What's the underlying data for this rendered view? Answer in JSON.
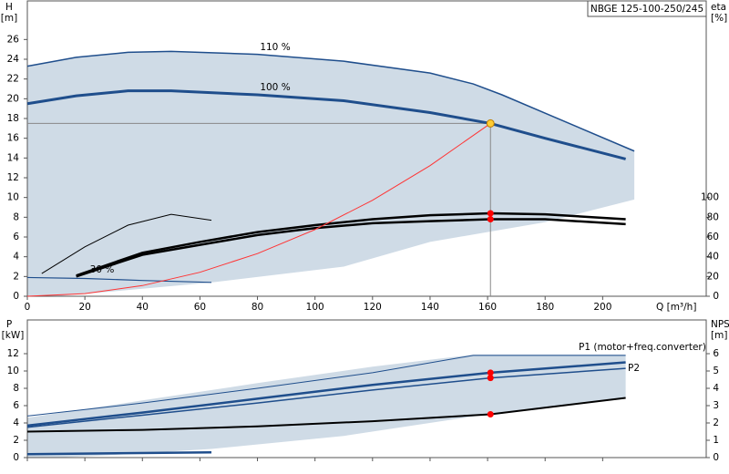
{
  "chart_data": [
    {
      "type": "line",
      "model": "NBGE 125-100-250/245",
      "ylabel": "H",
      "yunit": "[m]",
      "y2label": "eta",
      "y2unit": "[%]",
      "xlabel": "Q [m³/h]",
      "xlim": [
        0,
        236
      ],
      "xticks": [
        0,
        20,
        40,
        60,
        80,
        100,
        120,
        140,
        160,
        180,
        200
      ],
      "ylim": [
        0,
        30
      ],
      "yticks": [
        0,
        2,
        4,
        6,
        8,
        10,
        12,
        14,
        16,
        18,
        20,
        22,
        24,
        26
      ],
      "y2lim": [
        0,
        300
      ],
      "y2ticks": [
        0,
        20,
        40,
        60,
        80,
        100
      ],
      "operating_range": {
        "color": "#cfdbe6",
        "x": [
          0,
          17,
          35,
          50,
          80,
          110,
          140,
          155,
          165,
          190,
          211,
          211,
          180,
          140,
          110,
          64,
          30,
          10,
          0
        ],
        "y": [
          23.3,
          24.2,
          24.7,
          24.8,
          24.5,
          23.8,
          22.6,
          21.5,
          20.4,
          17.3,
          14.7,
          9.8,
          7.5,
          5.5,
          3.0,
          1.4,
          0.5,
          0,
          0
        ]
      },
      "series": [
        {
          "name": "110 %",
          "color": "#1f4e8c",
          "x": [
            0,
            17,
            35,
            50,
            80,
            110,
            140,
            155,
            165,
            190,
            211
          ],
          "values": [
            23.3,
            24.2,
            24.7,
            24.8,
            24.5,
            23.8,
            22.6,
            21.5,
            20.4,
            17.3,
            14.7
          ]
        },
        {
          "name": "100 %",
          "color": "#1f4e8c",
          "x": [
            0,
            17,
            35,
            50,
            80,
            110,
            140,
            161,
            180,
            208
          ],
          "values": [
            19.5,
            20.3,
            20.8,
            20.8,
            20.4,
            19.8,
            18.6,
            17.5,
            16.0,
            13.9
          ]
        },
        {
          "name": "30 %",
          "color": "#1f4e8c",
          "x": [
            0,
            20,
            40,
            64
          ],
          "values": [
            1.9,
            1.8,
            1.6,
            1.4
          ]
        },
        {
          "color": "#000000",
          "axis": "y2",
          "x": [
            17,
            40,
            60,
            80,
            100,
            120,
            140,
            161,
            180,
            208
          ],
          "values": [
            20,
            42,
            52,
            62,
            69,
            74,
            76,
            78,
            78,
            73
          ]
        },
        {
          "color": "#000000",
          "axis": "y2",
          "x": [
            17,
            40,
            60,
            80,
            100,
            120,
            140,
            161,
            180,
            208
          ],
          "values": [
            21,
            44,
            55,
            65,
            72,
            78,
            82,
            84,
            83,
            78
          ]
        },
        {
          "color": "#000000",
          "axis": "y2",
          "x": [
            5,
            20,
            35,
            50,
            64
          ],
          "values": [
            23,
            50,
            72,
            83,
            77
          ]
        },
        {
          "color": "#ff3333",
          "x": [
            0,
            20,
            40,
            60,
            80,
            100,
            120,
            140,
            161
          ],
          "values": [
            0,
            0.27,
            1.08,
            2.43,
            4.32,
            6.75,
            9.72,
            13.23,
            17.5
          ]
        }
      ],
      "duty_point": {
        "x": 161,
        "y": 17.5,
        "color": "#ffcc33"
      },
      "markers": [
        {
          "x": 161,
          "y": 84,
          "axis": "y2",
          "color": "#ff0000"
        },
        {
          "x": 161,
          "y": 78,
          "axis": "y2",
          "color": "#ff0000"
        }
      ]
    },
    {
      "type": "line",
      "ylabel": "P",
      "yunit": "[kW]",
      "y2label": "NPSH",
      "y2unit": "[m]",
      "xlim": [
        0,
        236
      ],
      "xticks": [
        0,
        20,
        40,
        60,
        80,
        100,
        120,
        140,
        160,
        180,
        200
      ],
      "ylim": [
        0,
        16
      ],
      "yticks": [
        0,
        2,
        4,
        6,
        8,
        10,
        12
      ],
      "y2lim": [
        0,
        8
      ],
      "y2ticks": [
        0,
        1,
        2,
        3,
        4,
        5,
        6
      ],
      "operating_range": {
        "color": "#cfdbe6",
        "x": [
          0,
          40,
          80,
          120,
          155,
          208,
          208,
          160,
          110,
          64,
          30,
          10,
          0
        ],
        "y": [
          4.6,
          6.6,
          8.6,
          10.5,
          11.9,
          11.9,
          6.9,
          5.0,
          2.5,
          1.0,
          0.3,
          0,
          0
        ]
      },
      "series": [
        {
          "name": "P1 (motor+freq.converter)",
          "color": "#1f4e8c",
          "x": [
            0,
            40,
            80,
            120,
            161,
            208
          ],
          "values": [
            3.7,
            5.2,
            6.8,
            8.4,
            9.8,
            11.0
          ]
        },
        {
          "name": "P2",
          "color": "#1f4e8c",
          "x": [
            0,
            40,
            80,
            120,
            161,
            208
          ],
          "values": [
            3.5,
            4.9,
            6.3,
            7.8,
            9.2,
            10.3
          ]
        },
        {
          "color": "#1f4e8c",
          "x": [
            0,
            40,
            80,
            120,
            155,
            208
          ],
          "values": [
            4.8,
            6.3,
            8.0,
            9.8,
            11.8,
            11.8
          ]
        },
        {
          "color": "#000000",
          "axis": "y2",
          "x": [
            0,
            40,
            80,
            120,
            161,
            208
          ],
          "values": [
            1.5,
            1.6,
            1.8,
            2.1,
            2.5,
            3.45
          ]
        },
        {
          "color": "#1f4e8c",
          "x": [
            0,
            64
          ],
          "values": [
            0.4,
            0.6
          ]
        }
      ],
      "markers": [
        {
          "x": 161,
          "y": 9.8,
          "color": "#ff0000"
        },
        {
          "x": 161,
          "y": 9.2,
          "color": "#ff0000"
        },
        {
          "x": 161,
          "y": 2.5,
          "axis": "y2",
          "color": "#ff0000"
        }
      ]
    }
  ]
}
